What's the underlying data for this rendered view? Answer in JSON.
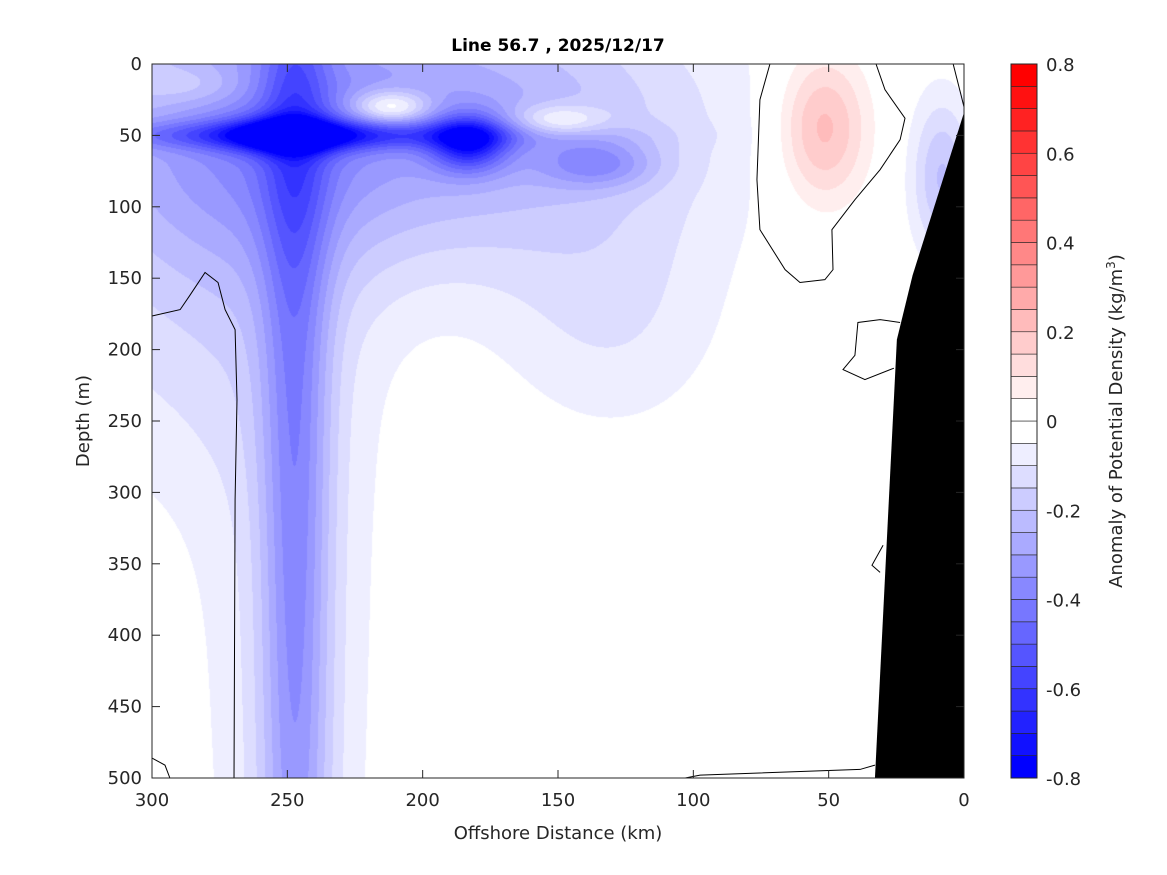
{
  "chart_data": {
    "type": "heatmap",
    "subtype": "filled-contour-section",
    "title": "Line 56.7 , 2025/12/17",
    "xlabel": "Offshore Distance (km)",
    "ylabel": "Depth (m)",
    "xlim": [
      300,
      0
    ],
    "ylim": [
      0,
      500
    ],
    "x_reversed": true,
    "y_reversed": true,
    "xticks": [
      300,
      250,
      200,
      150,
      100,
      50,
      0
    ],
    "yticks": [
      0,
      50,
      100,
      150,
      200,
      250,
      300,
      350,
      400,
      450,
      500
    ],
    "colorbar": {
      "label": "Anomaly of Potential Density (kg/m",
      "label_sup": "3",
      "label_end": ")",
      "range": [
        -0.8,
        0.8
      ],
      "level_step": 0.05,
      "ticks": [
        "-0.8",
        "-0.6",
        "-0.4",
        "-0.2",
        "0",
        "0.2",
        "0.4",
        "0.6",
        "0.8"
      ],
      "tick_values": [
        -0.8,
        -0.6,
        -0.4,
        -0.2,
        0,
        0.2,
        0.4,
        0.6,
        0.8
      ],
      "neg_color": "#0000ff",
      "pos_color": "#ff0000",
      "mid_color": "#ffffff"
    },
    "field_features_note": "anomaly field modelled as gaussian features in data units (km, m, kg/m3)",
    "field_features": [
      {
        "cx": 200,
        "sx": 70,
        "cd": 40,
        "sd": 70,
        "amp": -0.3
      },
      {
        "cx": 290,
        "sx": 40,
        "cd": 60,
        "sd": 70,
        "amp": -0.15
      },
      {
        "cx": 240,
        "sx": 55,
        "cd": 50,
        "sd": 7,
        "amp": -0.3
      },
      {
        "cx": 250,
        "sx": 15,
        "cd": 50,
        "sd": 9,
        "amp": -0.4
      },
      {
        "cx": 183,
        "sx": 10,
        "cd": 55,
        "sd": 14,
        "amp": -0.45
      },
      {
        "cx": 135,
        "sx": 15,
        "cd": 70,
        "sd": 12,
        "amp": -0.2
      },
      {
        "cx": 212,
        "sx": 10,
        "cd": 30,
        "sd": 8,
        "amp": 0.3
      },
      {
        "cx": 150,
        "sx": 12,
        "cd": 40,
        "sd": 8,
        "amp": 0.2
      },
      {
        "cx": 285,
        "sx": 15,
        "cd": 15,
        "sd": 10,
        "amp": 0.1
      },
      {
        "cx": 247,
        "sx": 9,
        "cd": 300,
        "sd": 400,
        "amp": -0.28
      },
      {
        "cx": 250,
        "sx": 25,
        "cd": 300,
        "sd": 400,
        "amp": -0.1
      },
      {
        "cx": 300,
        "sx": 40,
        "cd": 200,
        "sd": 80,
        "amp": -0.08
      },
      {
        "cx": 130,
        "sx": 30,
        "cd": 180,
        "sd": 60,
        "amp": -0.09
      },
      {
        "cx": 52,
        "sx": 12,
        "cd": 45,
        "sd": 38,
        "amp": 0.24
      },
      {
        "cx": 8,
        "sx": 8,
        "cd": 80,
        "sd": 40,
        "amp": -0.2
      }
    ],
    "bathymetry": [
      [
        0,
        34
      ],
      [
        19,
        148
      ],
      [
        24.8,
        193
      ],
      [
        32.9,
        500
      ],
      [
        0,
        500
      ]
    ],
    "bathymetry_color": "#000000",
    "zero_contours": [
      [
        [
          71.7,
          0
        ],
        [
          75.4,
          25
        ],
        [
          76.5,
          81
        ],
        [
          75.4,
          116
        ],
        [
          66.1,
          144
        ],
        [
          60.6,
          153
        ],
        [
          51.4,
          151
        ],
        [
          48.4,
          144
        ],
        [
          48.8,
          116
        ],
        [
          40.3,
          95
        ],
        [
          31,
          74
        ],
        [
          23.6,
          53
        ],
        [
          21.8,
          38
        ],
        [
          29.2,
          18
        ],
        [
          32.5,
          0
        ]
      ],
      [
        [
          4,
          0
        ],
        [
          2,
          15
        ],
        [
          0,
          30
        ]
      ],
      [
        [
          300,
          176.5
        ],
        [
          289.6,
          172
        ],
        [
          286,
          162
        ],
        [
          280.4,
          146
        ],
        [
          275.6,
          153
        ],
        [
          273,
          172
        ],
        [
          269.3,
          186
        ],
        [
          268.6,
          235
        ],
        [
          269.3,
          305
        ],
        [
          269.7,
          500
        ]
      ],
      [
        [
          300,
          486
        ],
        [
          295.2,
          491
        ],
        [
          293.4,
          500
        ]
      ],
      [
        [
          103,
          500
        ],
        [
          97.5,
          498
        ],
        [
          38.4,
          494
        ],
        [
          32.9,
          491
        ]
      ],
      [
        [
          23.6,
          181
        ],
        [
          31,
          179
        ],
        [
          39.2,
          181
        ],
        [
          40.3,
          204
        ],
        [
          44.7,
          214
        ],
        [
          36.6,
          221
        ],
        [
          25.9,
          213
        ]
      ],
      [
        [
          29.9,
          337
        ],
        [
          34,
          351
        ],
        [
          31,
          356
        ]
      ]
    ]
  }
}
